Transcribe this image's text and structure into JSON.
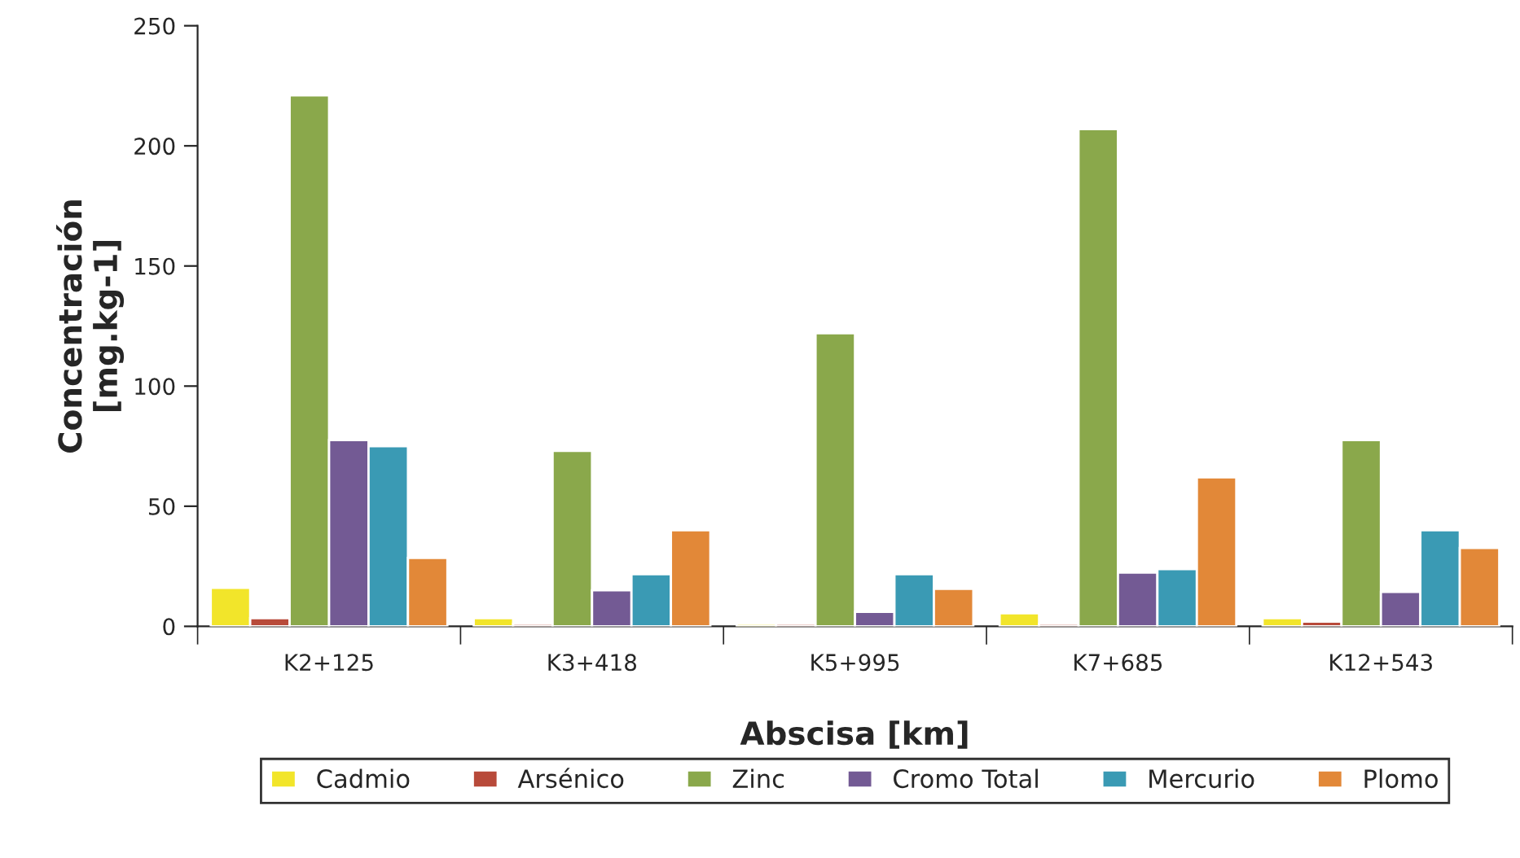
{
  "chart_data": {
    "type": "bar",
    "xlabel": "Abscisa [km]",
    "ylabel": "Concentración\n[mg.kg-1]",
    "categories": [
      "K2+125",
      "K3+418",
      "K5+995",
      "K7+685",
      "K12+543"
    ],
    "series": [
      {
        "name": "Cadmio",
        "color": "#f2e52a",
        "values": [
          16,
          3.4,
          1,
          5.4,
          3.4
        ]
      },
      {
        "name": "Arsénico",
        "color": "#b84a3a",
        "values": [
          3.4,
          1,
          1,
          1,
          2
        ]
      },
      {
        "name": "Zinc",
        "color": "#8aa84b",
        "values": [
          221,
          73,
          122,
          207,
          77.5
        ]
      },
      {
        "name": "Cromo Total",
        "color": "#735a94",
        "values": [
          77.5,
          15,
          6,
          22.4,
          14.3
        ]
      },
      {
        "name": "Mercurio",
        "color": "#3a9ab4",
        "values": [
          75,
          21.7,
          21.7,
          23.8,
          40
        ]
      },
      {
        "name": "Plomo",
        "color": "#e28838",
        "values": [
          28.5,
          40,
          15.6,
          62,
          32.6
        ]
      }
    ],
    "ylim": [
      0,
      250
    ],
    "yticks": [
      0,
      50,
      100,
      150,
      200,
      250
    ],
    "grid": false,
    "legend": "bottom"
  }
}
